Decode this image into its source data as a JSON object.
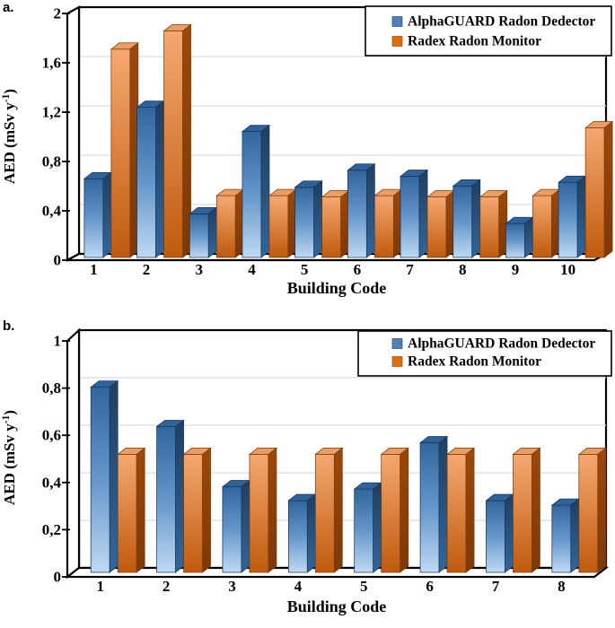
{
  "figure": {
    "background": "#ffffff",
    "panels": [
      {
        "panel_label": "a."
      },
      {
        "panel_label": "b."
      }
    ]
  },
  "chart_data": [
    {
      "type": "bar",
      "style": "3d-clustered-column",
      "panel": "a",
      "title": "",
      "xlabel": "Building Code",
      "ylabel": "AED (mSv y⁻¹)",
      "ylabel_parts": {
        "pre": "AED (mSv y",
        "sup": "-1",
        "post": ")"
      },
      "categories": [
        "1",
        "2",
        "3",
        "4",
        "5",
        "6",
        "7",
        "8",
        "9",
        "10"
      ],
      "series": [
        {
          "name": "AlphaGUARD Radon Dedector",
          "color": "#4f81bd",
          "values": [
            0.65,
            1.24,
            0.36,
            1.04,
            0.58,
            0.72,
            0.67,
            0.59,
            0.28,
            0.62
          ]
        },
        {
          "name": "Radex Radon Monitor",
          "color": "#e26b0a",
          "values": [
            1.72,
            1.87,
            0.51,
            0.51,
            0.5,
            0.51,
            0.5,
            0.5,
            0.51,
            1.07
          ]
        }
      ],
      "ylim": [
        0,
        2
      ],
      "yticks": [
        0,
        0.4,
        0.8,
        1.2,
        1.6,
        2
      ],
      "ytick_labels": [
        "0",
        "0,4",
        "0,8",
        "1,2",
        "1,6",
        "2"
      ],
      "grid": true,
      "legend_position": "top-right"
    },
    {
      "type": "bar",
      "style": "3d-clustered-column",
      "panel": "b",
      "title": "",
      "xlabel": "Building Code",
      "ylabel": "AED (mSv y⁻¹)",
      "ylabel_parts": {
        "pre": "AED (mSv y",
        "sup": "-1",
        "post": ")"
      },
      "categories": [
        "1",
        "2",
        "3",
        "4",
        "5",
        "6",
        "7",
        "8"
      ],
      "series": [
        {
          "name": "AlphaGUARD Radon Dedector",
          "color": "#4f81bd",
          "values": [
            0.8,
            0.63,
            0.37,
            0.31,
            0.36,
            0.56,
            0.31,
            0.29
          ]
        },
        {
          "name": "Radex Radon Monitor",
          "color": "#e26b0a",
          "values": [
            0.51,
            0.51,
            0.51,
            0.51,
            0.51,
            0.51,
            0.51,
            0.51
          ]
        }
      ],
      "ylim": [
        0,
        1
      ],
      "yticks": [
        0,
        0.2,
        0.4,
        0.6,
        0.8,
        1
      ],
      "ytick_labels": [
        "0",
        "0,2",
        "0,4",
        "0,6",
        "0,8",
        "1"
      ],
      "grid": true,
      "legend_position": "top-right"
    }
  ]
}
